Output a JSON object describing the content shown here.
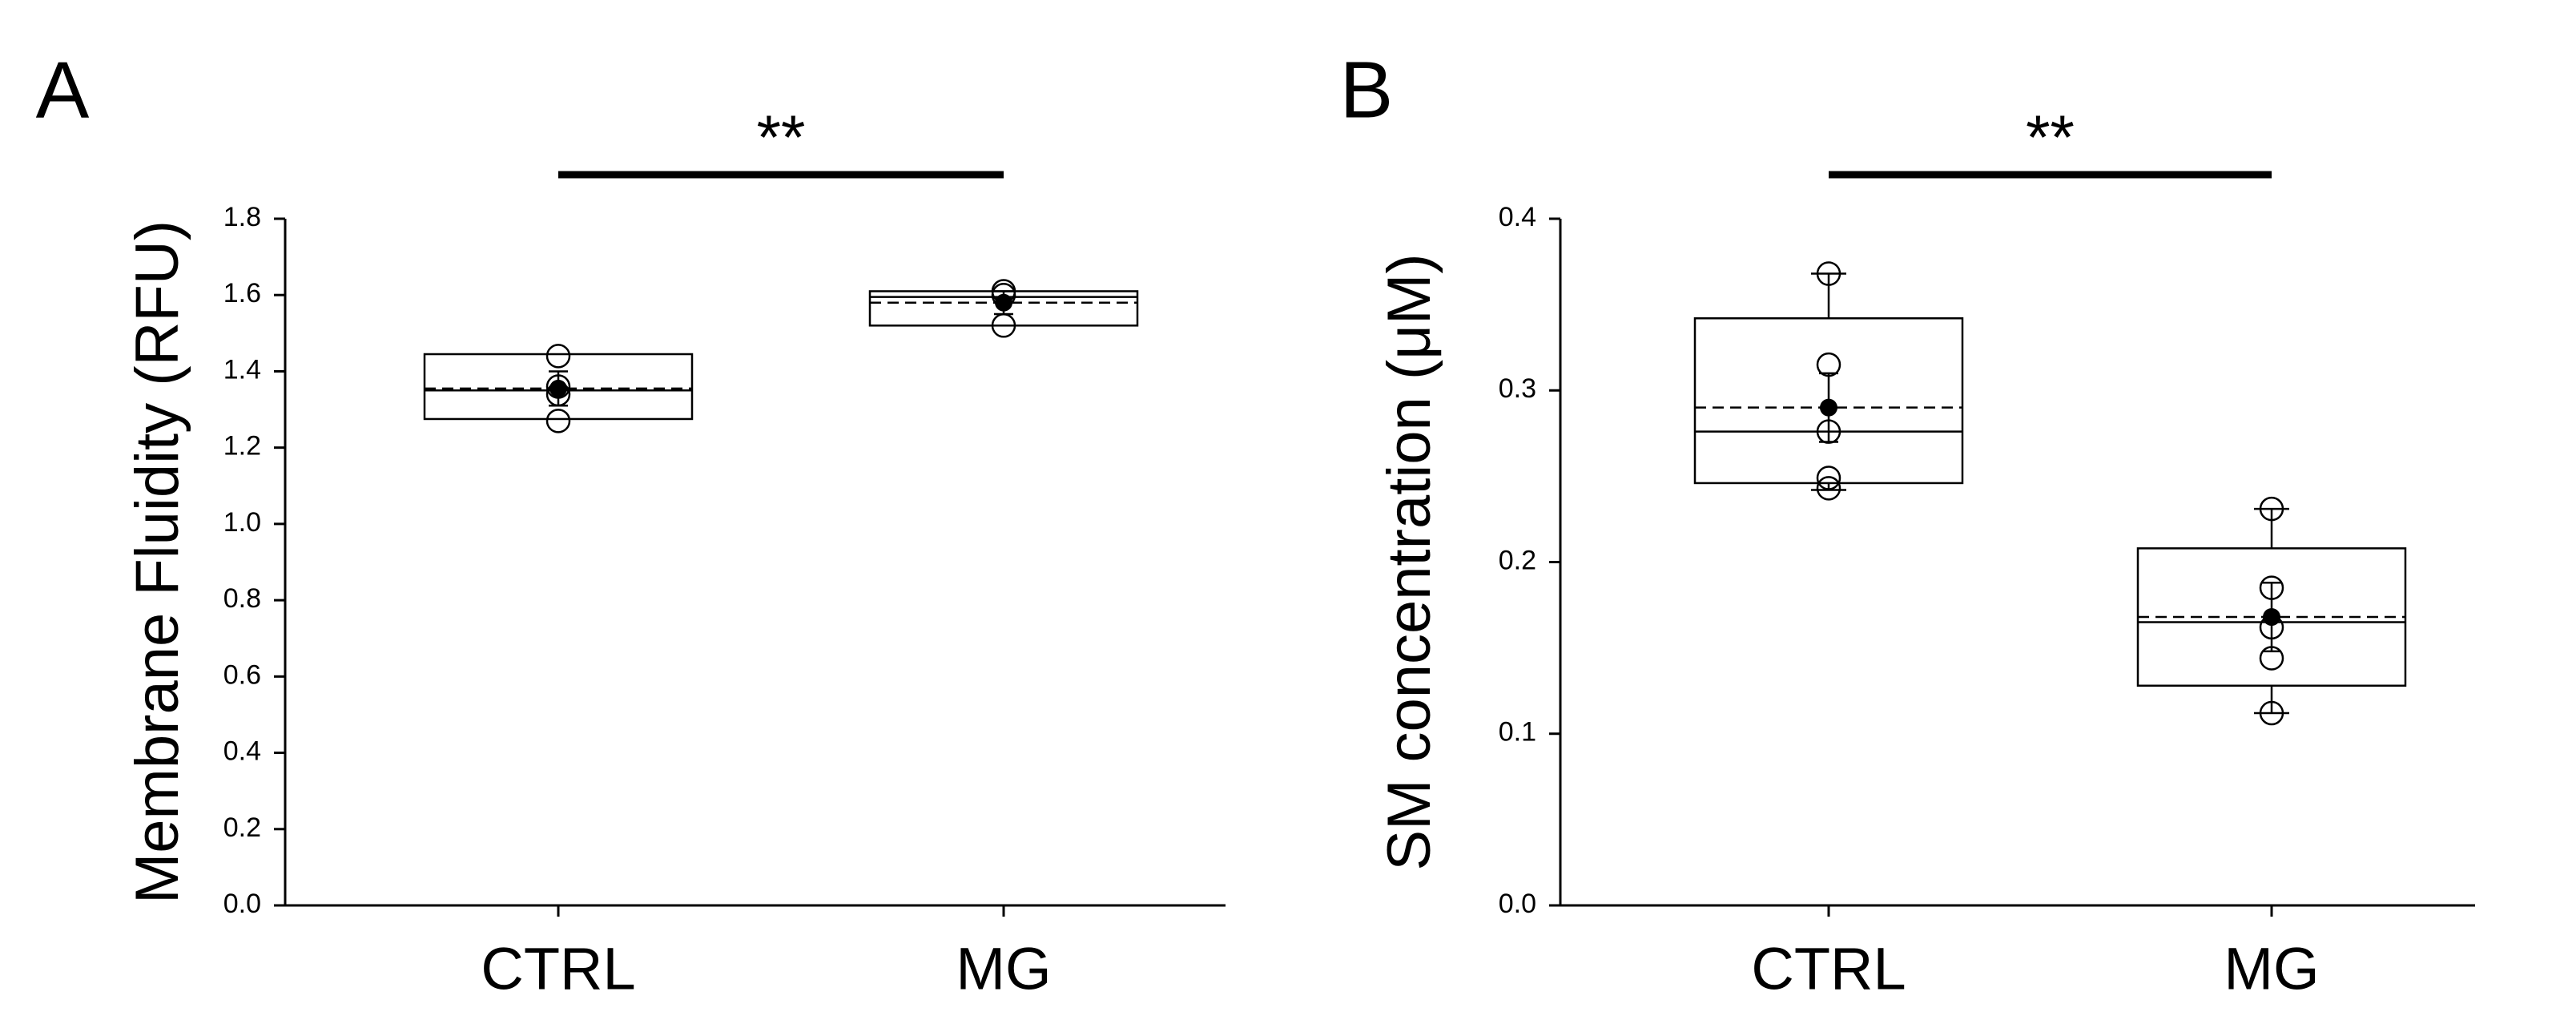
{
  "figure": {
    "panels": [
      {
        "label": "A"
      },
      {
        "label": "B"
      }
    ]
  },
  "chart_data": [
    {
      "type": "box",
      "panel": "A",
      "title": "",
      "xlabel": "",
      "ylabel": "Membrane Fluidity (RFU)",
      "ylim": [
        0,
        1.8
      ],
      "yticks": [
        0.0,
        0.2,
        0.4,
        0.6,
        0.8,
        1.0,
        1.2,
        1.4,
        1.6,
        1.8
      ],
      "ytick_labels": [
        "0.0",
        "0.2",
        "0.4",
        "0.6",
        "0.8",
        "1.0",
        "1.2",
        "1.4",
        "1.6",
        "1.8"
      ],
      "categories": [
        "CTRL",
        "MG"
      ],
      "groups": [
        {
          "category": "CTRL",
          "q1": 1.275,
          "median": 1.35,
          "q3": 1.445,
          "mean": 1.355,
          "whisker_low": 1.275,
          "whisker_high": 1.445,
          "mean_err": 0.045,
          "points": [
            1.27,
            1.34,
            1.36,
            1.44
          ]
        },
        {
          "category": "MG",
          "q1": 1.52,
          "median": 1.595,
          "q3": 1.61,
          "mean": 1.58,
          "whisker_low": 1.52,
          "whisker_high": 1.61,
          "mean_err": 0.03,
          "points": [
            1.52,
            1.6,
            1.61
          ]
        }
      ],
      "significance": {
        "text": "**",
        "from": "CTRL",
        "to": "MG"
      },
      "grid": false,
      "legend": "none"
    },
    {
      "type": "box",
      "panel": "B",
      "title": "",
      "xlabel": "",
      "ylabel": "SM concentration (μM)",
      "ylim": [
        0,
        0.4
      ],
      "yticks": [
        0.0,
        0.1,
        0.2,
        0.3,
        0.4
      ],
      "ytick_labels": [
        "0.0",
        "0.1",
        "0.2",
        "0.3",
        "0.4"
      ],
      "categories": [
        "CTRL",
        "MG"
      ],
      "groups": [
        {
          "category": "CTRL",
          "q1": 0.246,
          "median": 0.276,
          "q3": 0.342,
          "mean": 0.29,
          "whisker_low": 0.242,
          "whisker_high": 0.368,
          "mean_err": 0.02,
          "points": [
            0.368,
            0.315,
            0.276,
            0.249,
            0.243
          ]
        },
        {
          "category": "MG",
          "q1": 0.128,
          "median": 0.165,
          "q3": 0.208,
          "mean": 0.168,
          "whisker_low": 0.112,
          "whisker_high": 0.231,
          "mean_err": 0.02,
          "points": [
            0.231,
            0.185,
            0.162,
            0.144,
            0.112
          ]
        }
      ],
      "significance": {
        "text": "**",
        "from": "CTRL",
        "to": "MG"
      },
      "grid": false,
      "legend": "none"
    }
  ]
}
